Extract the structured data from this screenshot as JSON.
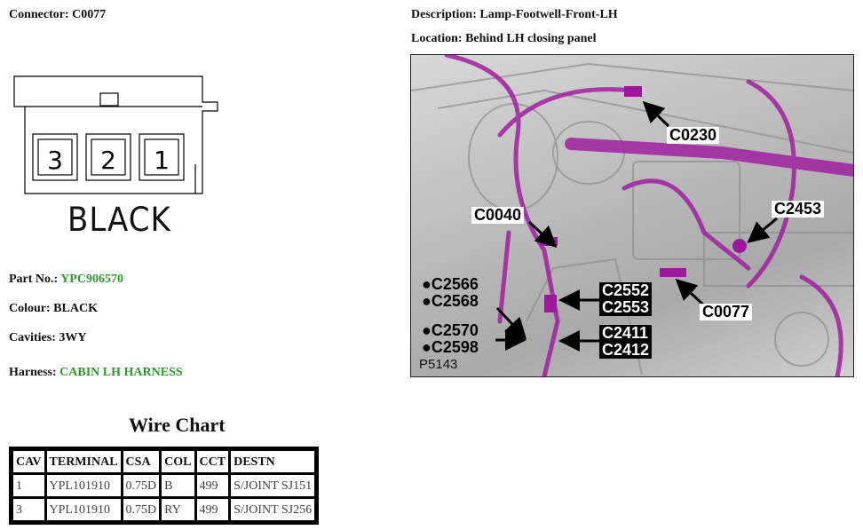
{
  "header": {
    "connector_label": "Connector:",
    "connector_value": "C0077",
    "description_label": "Description:",
    "description_value": "Lamp-Footwell-Front-LH",
    "location_label": "Location:",
    "location_value": "Behind LH closing panel"
  },
  "connector_face": {
    "cavities": [
      "3",
      "2",
      "1"
    ],
    "colour_text": "BLACK"
  },
  "details": {
    "part_no_label": "Part No.:",
    "part_no_value": "YPC906570",
    "colour_label": "Colour:",
    "colour_value": "BLACK",
    "cavities_label": "Cavities:",
    "cavities_value": "3WY",
    "harness_label": "Harness:",
    "harness_value": "CABIN LH HARNESS",
    "accent_color": "#2e9a2e"
  },
  "wire_chart": {
    "title": "Wire Chart",
    "columns": [
      "CAV",
      "TERMINAL",
      "CSA",
      "COL",
      "CCT",
      "DESTN"
    ],
    "rows": [
      [
        "1",
        "YPL101910",
        "0.75D",
        "B",
        "499",
        "S/JOINT SJ151"
      ],
      [
        "3",
        "YPL101910",
        "0.75D",
        "RY",
        "499",
        "S/JOINT SJ256"
      ]
    ]
  },
  "location_picture": {
    "harness_color": "#a020a0",
    "labels": {
      "c0230": "C0230",
      "c0040": "C0040",
      "c2453": "C2453",
      "c0077": "C0077",
      "c2552": "C2552",
      "c2553": "C2553",
      "c2411": "C2411",
      "c2412": "C2412",
      "c2566": "●C2566",
      "c2568": "●C2568",
      "c2570": "●C2570",
      "c2598": "●C2598",
      "picture_id": "P5143"
    }
  }
}
